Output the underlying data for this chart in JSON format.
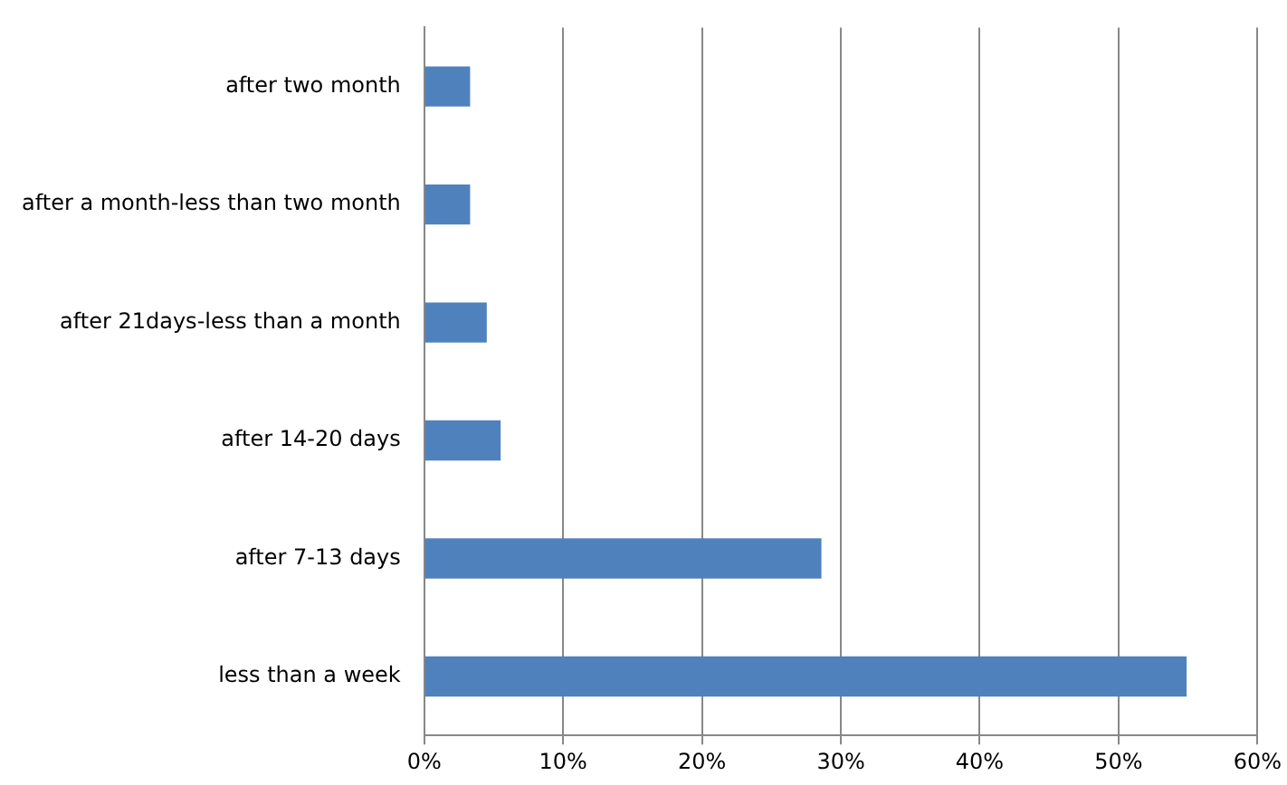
{
  "chart_data": {
    "type": "bar",
    "orientation": "horizontal",
    "categories": [
      "after two month",
      "after a month-less than two month",
      "after 21days-less than a month",
      "after 14-20 days",
      "after 7-13 days",
      "less than a week"
    ],
    "values": [
      3.3,
      3.3,
      4.5,
      5.5,
      28.6,
      54.9
    ],
    "color": "#4f81bd",
    "xlim": [
      0,
      60
    ],
    "xticks": [
      {
        "value": 0,
        "label": "0%"
      },
      {
        "value": 10,
        "label": "10%"
      },
      {
        "value": 20,
        "label": "20%"
      },
      {
        "value": 30,
        "label": "30%"
      },
      {
        "value": 40,
        "label": "40%"
      },
      {
        "value": 50,
        "label": "50%"
      },
      {
        "value": 60,
        "label": "60%"
      }
    ],
    "grid": "x"
  }
}
